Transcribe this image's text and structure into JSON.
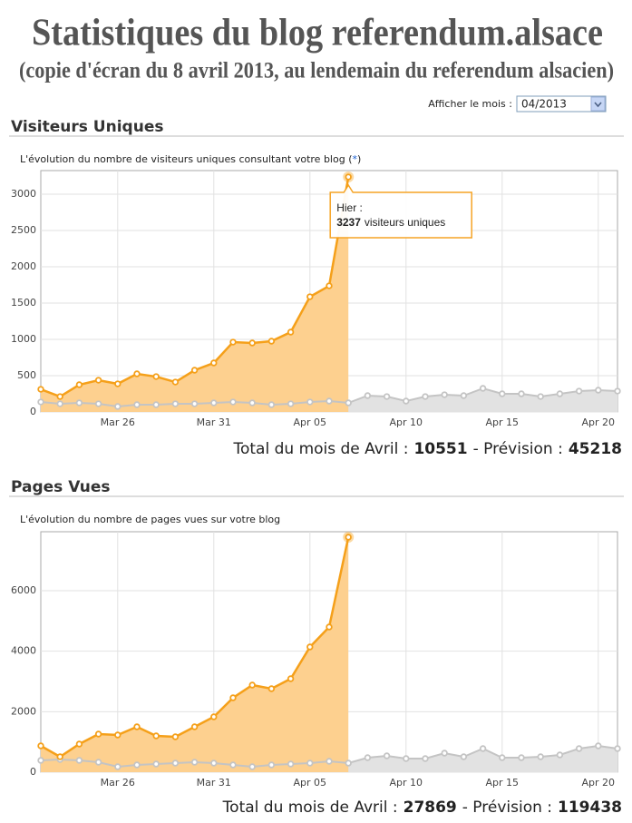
{
  "header": {
    "title": "Statistiques du blog referendum.alsace",
    "subtitle": "(copie d'écran du 8 avril 2013, au lendemain du referendum alsacien)"
  },
  "controls": {
    "month_label": "Afficher le mois :",
    "month_value": "04/2013"
  },
  "chart_data": [
    {
      "type": "area",
      "title": "Visiteurs Uniques",
      "subtitle": "L'évolution du nombre de visiteurs uniques consultant votre blog (",
      "subtitle_link": "*",
      "subtitle_end": ")",
      "categories": [
        null,
        null,
        null,
        null,
        "Mar 26",
        null,
        null,
        null,
        null,
        "Mar 31",
        null,
        null,
        null,
        null,
        "Apr 05",
        null,
        null,
        null,
        null,
        "Apr 10",
        null,
        null,
        null,
        null,
        "Apr 15",
        null,
        null,
        null,
        null,
        "Apr 20",
        null
      ],
      "series": [
        {
          "color": "#f5a01a",
          "fill": "#fdd08f",
          "values": [
            312,
            212,
            375,
            437,
            387,
            525,
            487,
            412,
            575,
            675,
            962,
            950,
            975,
            1100,
            1587,
            1737,
            3237,
            null,
            null,
            null,
            null,
            null,
            null,
            null,
            null,
            null,
            null,
            null,
            null,
            null,
            null
          ]
        },
        {
          "color": "#c4c4c4",
          "fill": "#e2e2e2",
          "values": [
            137,
            112,
            125,
            112,
            75,
            100,
            100,
            112,
            112,
            125,
            137,
            125,
            100,
            112,
            137,
            150,
            125,
            225,
            212,
            150,
            212,
            237,
            225,
            325,
            250,
            250,
            212,
            250,
            287,
            300,
            287
          ]
        }
      ],
      "ylim": [
        0,
        3325
      ],
      "yticks": [
        0,
        500,
        1000,
        1500,
        2000,
        2500,
        3000
      ],
      "grid": true,
      "tooltip": {
        "label": "Hier :",
        "value": 3237,
        "unit": "visiteurs uniques"
      },
      "total_label": "Total du mois de Avril :",
      "total": 10551,
      "forecast_label": "- Prévision :",
      "forecast": 45218
    },
    {
      "type": "area",
      "title": "Pages Vues",
      "subtitle": "L'évolution du nombre de pages vues sur votre blog",
      "categories": [
        null,
        null,
        null,
        null,
        "Mar 26",
        null,
        null,
        null,
        null,
        "Mar 31",
        null,
        null,
        null,
        null,
        "Apr 05",
        null,
        null,
        null,
        null,
        "Apr 10",
        null,
        null,
        null,
        null,
        "Apr 15",
        null,
        null,
        null,
        null,
        "Apr 20",
        null
      ],
      "series": [
        {
          "color": "#f5a01a",
          "fill": "#fdd08f",
          "values": [
            870,
            510,
            930,
            1260,
            1230,
            1500,
            1200,
            1170,
            1500,
            1830,
            2460,
            2880,
            2760,
            3090,
            4140,
            4800,
            7770,
            null,
            null,
            null,
            null,
            null,
            null,
            null,
            null,
            null,
            null,
            null,
            null,
            null,
            null
          ]
        },
        {
          "color": "#c4c4c4",
          "fill": "#e2e2e2",
          "values": [
            390,
            420,
            390,
            330,
            180,
            240,
            270,
            300,
            330,
            300,
            240,
            180,
            240,
            270,
            300,
            360,
            300,
            480,
            540,
            450,
            450,
            630,
            510,
            780,
            480,
            480,
            510,
            570,
            780,
            870,
            780
          ]
        }
      ],
      "ylim": [
        0,
        7950
      ],
      "yticks": [
        0,
        2000,
        4000,
        6000
      ],
      "grid": true,
      "total_label": "Total du mois de Avril :",
      "total": 27869,
      "forecast_label": "- Prévision :",
      "forecast": 119438
    }
  ]
}
